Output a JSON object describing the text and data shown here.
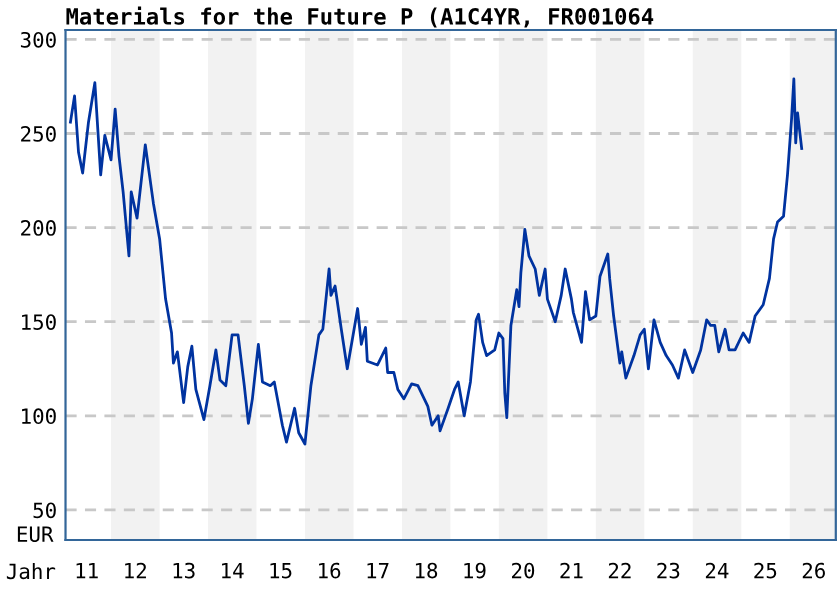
{
  "chart_data": {
    "type": "line",
    "title": "Materials for the Future P (A1C4YR, FR001064",
    "xlabel": "Jahr",
    "ylabel": "EUR",
    "xlim": [
      "2011-01-23",
      "2026-12-14"
    ],
    "ylim": [
      34,
      305
    ],
    "xticks": [
      {
        "value": "2011-07-01",
        "label": "11"
      },
      {
        "value": "2012-07-01",
        "label": "12"
      },
      {
        "value": "2013-07-01",
        "label": "13"
      },
      {
        "value": "2014-07-01",
        "label": "14"
      },
      {
        "value": "2015-07-01",
        "label": "15"
      },
      {
        "value": "2016-07-01",
        "label": "16"
      },
      {
        "value": "2017-07-01",
        "label": "17"
      },
      {
        "value": "2018-07-01",
        "label": "18"
      },
      {
        "value": "2019-07-01",
        "label": "19"
      },
      {
        "value": "2020-07-01",
        "label": "20"
      },
      {
        "value": "2021-07-01",
        "label": "21"
      },
      {
        "value": "2022-07-01",
        "label": "22"
      },
      {
        "value": "2023-07-01",
        "label": "23"
      },
      {
        "value": "2024-07-01",
        "label": "24"
      },
      {
        "value": "2025-07-01",
        "label": "25"
      },
      {
        "value": "2026-07-01",
        "label": "26"
      }
    ],
    "yticks": [
      50,
      100,
      150,
      200,
      250,
      300
    ],
    "grid": "y",
    "marker": "none",
    "line_style": "solid",
    "bands": [
      {
        "axis": "x",
        "from": "2012-01-01",
        "to": "2013-01-01",
        "color": "#f2f2f2"
      },
      {
        "axis": "x",
        "from": "2014-01-01",
        "to": "2015-01-01",
        "color": "#f2f2f2"
      },
      {
        "axis": "x",
        "from": "2016-01-01",
        "to": "2017-01-01",
        "color": "#f2f2f2"
      },
      {
        "axis": "x",
        "from": "2018-01-01",
        "to": "2019-01-01",
        "color": "#f2f2f2"
      },
      {
        "axis": "x",
        "from": "2020-01-01",
        "to": "2021-01-01",
        "color": "#f2f2f2"
      },
      {
        "axis": "x",
        "from": "2022-01-01",
        "to": "2023-01-01",
        "color": "#f2f2f2"
      },
      {
        "axis": "x",
        "from": "2024-01-01",
        "to": "2025-01-01",
        "color": "#f2f2f2"
      },
      {
        "axis": "x",
        "from": "2026-01-01",
        "to": "2026-12-14",
        "color": "#f2f2f2"
      }
    ],
    "series": [
      {
        "color": "#0033a0",
        "x": [
          "2011-03-01",
          "2011-04-01",
          "2011-05-01",
          "2011-06-01",
          "2011-07-15",
          "2011-09-01",
          "2011-10-15",
          "2011-11-15",
          "2012-01-01",
          "2012-02-01",
          "2012-03-01",
          "2012-04-01",
          "2012-05-15",
          "2012-06-01",
          "2012-07-15",
          "2012-09-15",
          "2012-11-15",
          "2013-01-01",
          "2013-02-15",
          "2013-04-01",
          "2013-04-15",
          "2013-05-15",
          "2013-07-01",
          "2013-08-01",
          "2013-09-01",
          "2013-10-01",
          "2013-12-01",
          "2014-01-15",
          "2014-03-01",
          "2014-04-01",
          "2014-05-15",
          "2014-07-01",
          "2014-08-15",
          "2014-10-01",
          "2014-11-01",
          "2014-12-01",
          "2015-01-15",
          "2015-02-15",
          "2015-04-15",
          "2015-05-15",
          "2015-07-15",
          "2015-08-15",
          "2015-10-15",
          "2015-11-15",
          "2016-01-01",
          "2016-02-15",
          "2016-04-15",
          "2016-05-15",
          "2016-07-01",
          "2016-07-15",
          "2016-08-15",
          "2016-10-01",
          "2016-11-15",
          "2017-01-15",
          "2017-02-01",
          "2017-03-01",
          "2017-04-01",
          "2017-04-15",
          "2017-07-01",
          "2017-09-01",
          "2017-09-15",
          "2017-11-01",
          "2017-12-01",
          "2018-01-15",
          "2018-03-15",
          "2018-05-01",
          "2018-07-15",
          "2018-08-15",
          "2018-10-01",
          "2018-10-15",
          "2018-12-15",
          "2019-02-01",
          "2019-03-01",
          "2019-04-15",
          "2019-06-01",
          "2019-07-15",
          "2019-08-01",
          "2019-09-01",
          "2019-10-01",
          "2019-12-01",
          "2020-01-01",
          "2020-02-01",
          "2020-02-15",
          "2020-03-01",
          "2020-04-01",
          "2020-05-15",
          "2020-06-01",
          "2020-06-15",
          "2020-07-15",
          "2020-08-15",
          "2020-10-01",
          "2020-11-01",
          "2020-12-15",
          "2021-01-01",
          "2021-03-01",
          "2021-04-15",
          "2021-05-15",
          "2021-07-01",
          "2021-07-15",
          "2021-09-15",
          "2021-10-15",
          "2021-11-15",
          "2022-01-01",
          "2022-02-01",
          "2022-04-01",
          "2022-04-15",
          "2022-05-15",
          "2022-07-01",
          "2022-07-15",
          "2022-08-15",
          "2022-10-15",
          "2022-12-01",
          "2023-01-01",
          "2023-02-01",
          "2023-03-15",
          "2023-05-01",
          "2023-06-15",
          "2023-08-01",
          "2023-09-15",
          "2023-11-01",
          "2024-01-01",
          "2024-03-01",
          "2024-04-15",
          "2024-05-15",
          "2024-06-15",
          "2024-07-15",
          "2024-09-01",
          "2024-10-01",
          "2024-11-15",
          "2025-01-15",
          "2025-03-01",
          "2025-04-15",
          "2025-06-15",
          "2025-08-01",
          "2025-09-01",
          "2025-10-01",
          "2025-11-15",
          "2025-12-15",
          "2026-01-15",
          "2026-02-01",
          "2026-02-15",
          "2026-03-01",
          "2026-04-01"
        ],
        "values": [
          256,
          270,
          240,
          229,
          256,
          277,
          228,
          249,
          236,
          263,
          238,
          219,
          185,
          219,
          205,
          244,
          213,
          194,
          162,
          144,
          128,
          134,
          107,
          126,
          137,
          114,
          98,
          116,
          135,
          119,
          116,
          143,
          143,
          116,
          96,
          109,
          138,
          118,
          116,
          118,
          95,
          86,
          104,
          91,
          85,
          116,
          143,
          146,
          178,
          164,
          169,
          146,
          125,
          150,
          157,
          138,
          147,
          129,
          127,
          136,
          123,
          123,
          114,
          109,
          117,
          116,
          105,
          95,
          100,
          92,
          104,
          114,
          118,
          100,
          118,
          151,
          154,
          139,
          132,
          135,
          144,
          141,
          112,
          99,
          148,
          167,
          158,
          176,
          199,
          185,
          178,
          164,
          178,
          162,
          150,
          164,
          178,
          162,
          155,
          139,
          166,
          151,
          153,
          174,
          186,
          173,
          153,
          128,
          134,
          120,
          132,
          143,
          146,
          125,
          151,
          139,
          132,
          127,
          120,
          135,
          123,
          135,
          151,
          148,
          148,
          134,
          146,
          135,
          135,
          144,
          139,
          153,
          159,
          173,
          194,
          203,
          206,
          228,
          258,
          279,
          245,
          261,
          242
        ]
      }
    ]
  }
}
